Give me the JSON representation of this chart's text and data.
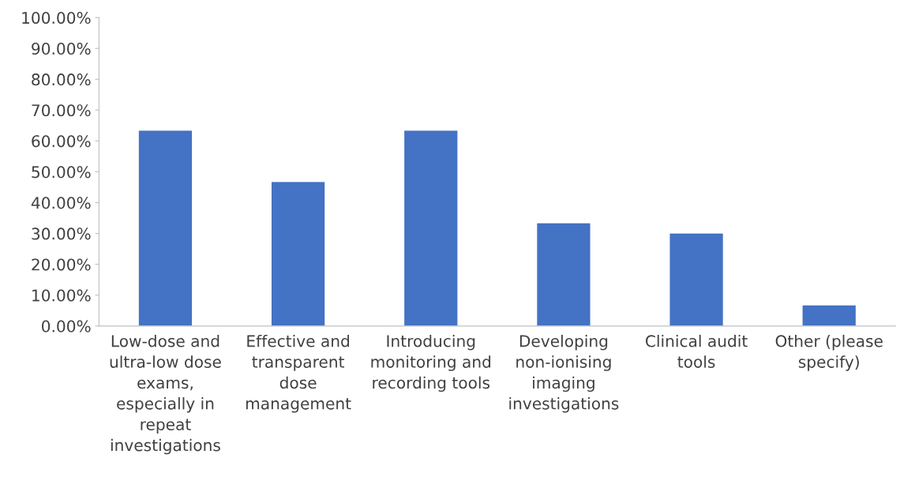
{
  "chart_data": {
    "type": "bar",
    "categories": [
      "Low-dose and\nultra-low dose\nexams,\nespecially in\nrepeat\ninvestigations",
      "Effective and\ntransparent\ndose\nmanagement",
      "Introducing\nmonitoring and\nrecording tools",
      "Developing\nnon-ionising\nimaging\ninvestigations",
      "Clinical audit\ntools",
      "Other (please\nspecify)"
    ],
    "values": [
      63.3,
      46.7,
      63.3,
      33.3,
      30,
      6.7
    ],
    "color": "#4472c4",
    "ylim": [
      0,
      100
    ],
    "yticks": [
      {
        "value": 0,
        "label": "0.00%"
      },
      {
        "value": 10,
        "label": "10.00%"
      },
      {
        "value": 20,
        "label": "20.00%"
      },
      {
        "value": 30,
        "label": "30.00%"
      },
      {
        "value": 40,
        "label": "40.00%"
      },
      {
        "value": 50,
        "label": "50.00%"
      },
      {
        "value": 60,
        "label": "60.00%"
      },
      {
        "value": 70,
        "label": "70.00%"
      },
      {
        "value": 80,
        "label": "80.00%"
      },
      {
        "value": 90,
        "label": "90.00%"
      },
      {
        "value": 100,
        "label": "100.00%"
      }
    ],
    "grid": false
  }
}
